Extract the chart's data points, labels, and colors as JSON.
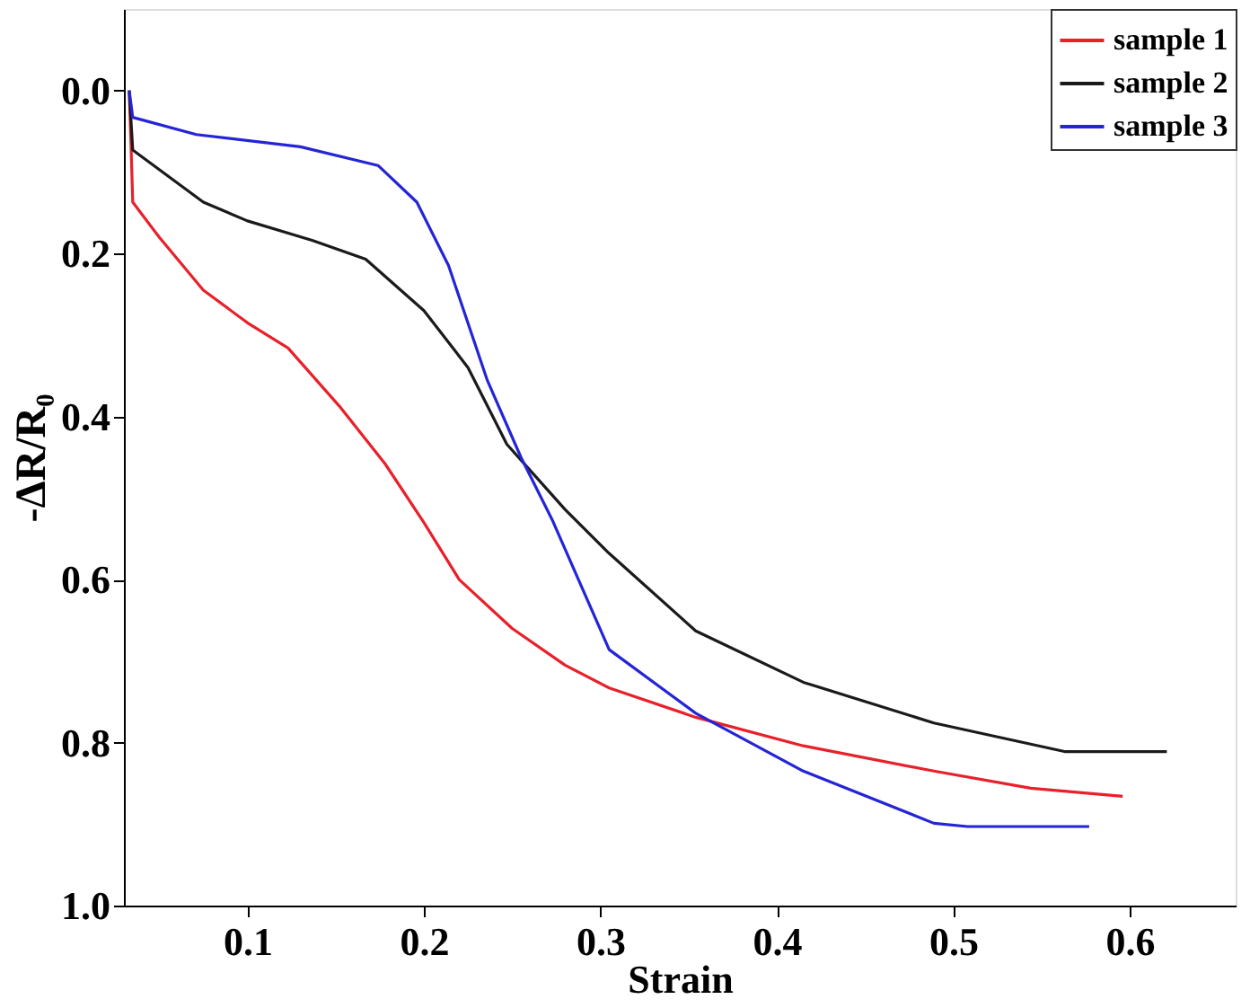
{
  "chart_data": {
    "type": "line",
    "xlabel": "Strain",
    "ylabel": "-ΔR/R₀",
    "xlim": [
      0.03,
      0.66
    ],
    "ylim": [
      1.0,
      -0.1
    ],
    "xticks": [
      0.1,
      0.2,
      0.3,
      0.4,
      0.5,
      0.6
    ],
    "yticks": [
      {
        "value": 0.0,
        "label": "0.0"
      },
      0.2,
      0.4,
      0.6,
      0.8,
      {
        "value": 1.0,
        "label": "1.0"
      }
    ],
    "grid": false,
    "legend": "top right",
    "line_style": "solid",
    "marker": "none",
    "series": [
      {
        "name": "sample 1",
        "color": "#e8202a",
        "x": [
          0.033,
          0.034,
          0.035,
          0.05,
          0.075,
          0.1,
          0.123,
          0.152,
          0.178,
          0.2,
          0.22,
          0.25,
          0.28,
          0.305,
          0.354,
          0.415,
          0.489,
          0.544,
          0.596
        ],
        "values": [
          0.0,
          0.065,
          0.137,
          0.18,
          0.245,
          0.285,
          0.316,
          0.387,
          0.458,
          0.53,
          0.6,
          0.66,
          0.705,
          0.733,
          0.769,
          0.804,
          0.835,
          0.856,
          0.866
        ]
      },
      {
        "name": "sample 2",
        "color": "#1a1a1a",
        "x": [
          0.033,
          0.035,
          0.075,
          0.1,
          0.137,
          0.167,
          0.2,
          0.225,
          0.247,
          0.28,
          0.305,
          0.354,
          0.415,
          0.489,
          0.563,
          0.621
        ],
        "values": [
          0.0,
          0.073,
          0.137,
          0.16,
          0.184,
          0.207,
          0.27,
          0.34,
          0.434,
          0.514,
          0.568,
          0.663,
          0.726,
          0.776,
          0.811,
          0.811
        ]
      },
      {
        "name": "sample 3",
        "color": "#2424d8",
        "x": [
          0.033,
          0.035,
          0.071,
          0.13,
          0.174,
          0.196,
          0.214,
          0.236,
          0.255,
          0.273,
          0.305,
          0.354,
          0.415,
          0.489,
          0.508,
          0.577
        ],
        "values": [
          0.0,
          0.033,
          0.054,
          0.069,
          0.092,
          0.137,
          0.215,
          0.356,
          0.45,
          0.528,
          0.686,
          0.764,
          0.835,
          0.899,
          0.903,
          0.903
        ]
      }
    ]
  }
}
